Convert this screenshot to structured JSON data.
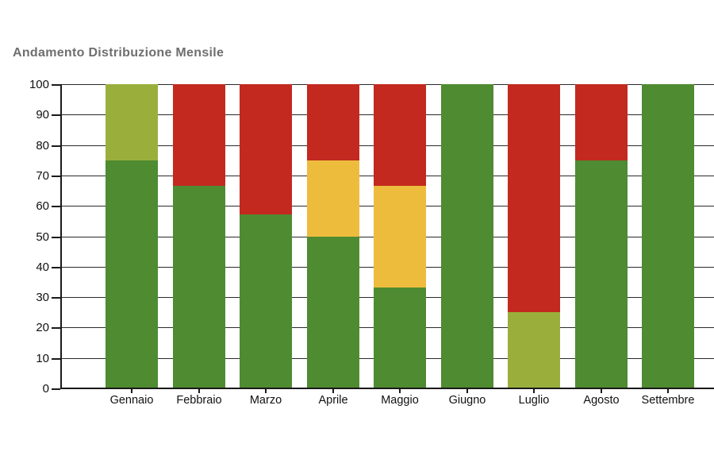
{
  "title": "Andamento Distribuzione Mensile",
  "chart_data": {
    "type": "bar",
    "stacked": true,
    "title": "Andamento Distribuzione Mensile",
    "categories": [
      "Gennaio",
      "Febbraio",
      "Marzo",
      "Aprile",
      "Maggio",
      "Giugno",
      "Luglio",
      "Agosto",
      "Settembre"
    ],
    "series": [
      {
        "name": "green",
        "color": "#4e8b31",
        "values": [
          75,
          66.7,
          57.1,
          50,
          33.3,
          100,
          0,
          75,
          100
        ]
      },
      {
        "name": "light-green",
        "color": "#9aaf3b",
        "values": [
          25,
          0,
          0,
          0,
          0,
          0,
          25,
          0,
          0
        ]
      },
      {
        "name": "yellow",
        "color": "#eebc3d",
        "values": [
          0,
          0,
          0,
          25,
          33.4,
          0,
          0,
          0,
          0
        ]
      },
      {
        "name": "red",
        "color": "#c3291f",
        "values": [
          0,
          33.3,
          42.9,
          25,
          33.3,
          0,
          75,
          25,
          0
        ]
      }
    ],
    "xlabel": "",
    "ylabel": "",
    "ylim": [
      0,
      100
    ],
    "yticks": [
      0,
      10,
      20,
      30,
      40,
      50,
      60,
      70,
      80,
      90,
      100
    ],
    "grid": true,
    "legend": "none"
  },
  "colors": {
    "background": "#ffffff",
    "title_text": "#6e6e6e",
    "axis": "#1a1a1a",
    "gridline": "#2a2a2a",
    "tick_label": "#111111"
  }
}
